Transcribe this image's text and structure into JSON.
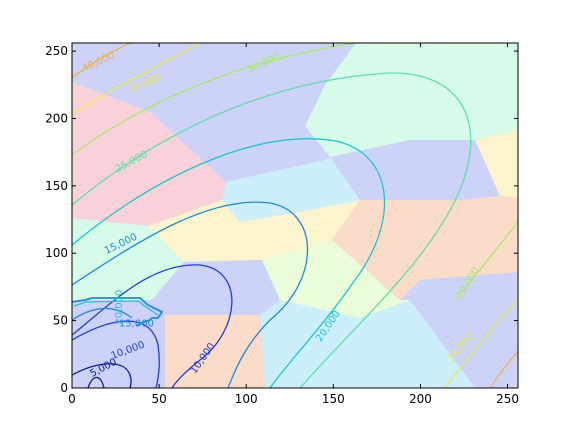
{
  "chart_data": {
    "type": "contour",
    "xlim": [
      0,
      256
    ],
    "ylim": [
      0,
      256
    ],
    "x_ticks": [
      "0",
      "50",
      "100",
      "150",
      "200",
      "250"
    ],
    "y_ticks": [
      "0",
      "50",
      "100",
      "150",
      "200",
      "250"
    ],
    "grid": false,
    "background": "voronoi-style pastel regions",
    "region_colors": [
      "#cdd2f8",
      "#f8d2d8",
      "#d6fbe8",
      "#fcf4cc",
      "#fadcc8",
      "#cdeffc",
      "#eafcd8"
    ],
    "contour_levels": [
      {
        "label": "5,000",
        "color": "#0a1e9b"
      },
      {
        "label": "10,000",
        "color": "#1f3fd0"
      },
      {
        "label": "15,000",
        "color": "#1d8ae0"
      },
      {
        "label": "20,000",
        "color": "#1cc6d0"
      },
      {
        "label": "25,000",
        "color": "#5ee0a8"
      },
      {
        "label": "30,000",
        "color": "#a8ea6a"
      },
      {
        "label": "35,000",
        "color": "#e6ee50"
      },
      {
        "label": "40,000",
        "color": "#f2b04a"
      }
    ],
    "annotations": [
      {
        "text": "40,000",
        "x": 15,
        "y": 242,
        "rotation": -24,
        "color": "#f2b04a"
      },
      {
        "text": "35,000",
        "x": 42,
        "y": 226,
        "rotation": -24,
        "color": "#e6ee50"
      },
      {
        "text": "30,000",
        "x": 110,
        "y": 241,
        "rotation": -24,
        "color": "#a8ea6a"
      },
      {
        "text": "25,000",
        "x": 34,
        "y": 168,
        "rotation": -28,
        "color": "#5ee0a8"
      },
      {
        "text": "15,000",
        "x": 28,
        "y": 107,
        "rotation": -26,
        "color": "#1d8ae0"
      },
      {
        "text": "20,000",
        "x": 147,
        "y": 46,
        "rotation": -56,
        "color": "#1cc6d0"
      },
      {
        "text": "10,000",
        "x": 75,
        "y": 22,
        "rotation": -55,
        "color": "#1f3fd0"
      },
      {
        "text": "10,000",
        "x": 32,
        "y": 28,
        "rotation": -20,
        "color": "#1f3fd0"
      },
      {
        "text": "15,000",
        "x": 37,
        "y": 48,
        "rotation": 0,
        "color": "#1d8ae0"
      },
      {
        "text": "5,000",
        "x": 18,
        "y": 15,
        "rotation": -28,
        "color": "#0a1e9b"
      },
      {
        "text": "30,000",
        "x": 227,
        "y": 78,
        "rotation": -58,
        "color": "#a8ea6a"
      },
      {
        "text": "35,000",
        "x": 223,
        "y": 30,
        "rotation": -50,
        "color": "#e6ee50"
      },
      {
        "text": "20,000",
        "x": 27,
        "y": 60,
        "rotation": -90,
        "color": "#1cc6d0"
      }
    ]
  }
}
